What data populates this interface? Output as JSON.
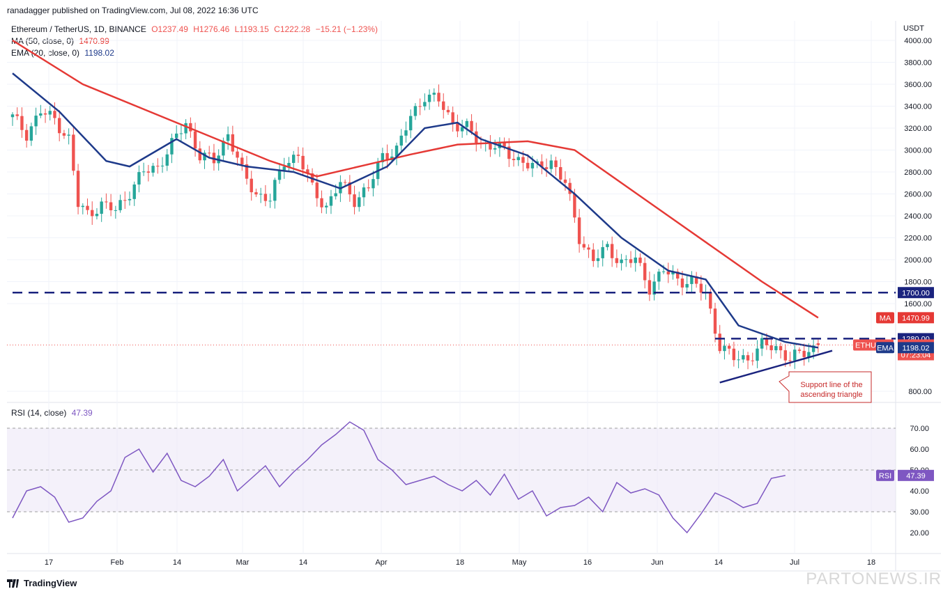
{
  "header": {
    "publisher": "ranadagger published on TradingView.com, Jul 08, 2022 16:36 UTC"
  },
  "legend": {
    "symbol": "Ethereum / TetherUS, 1D, BINANCE",
    "open": "O1237.49",
    "high": "H1276.46",
    "low": "L1193.15",
    "close": "C1222.28",
    "change": "−15.21 (−1.23%)",
    "ma_label": "MA (50, close, 0)",
    "ma_value": "1470.99",
    "ema_label": "EMA (20, close, 0)",
    "ema_value": "1198.02",
    "rsi_label": "RSI (14, close)",
    "rsi_value": "47.39"
  },
  "footer": {
    "brand": "TradingView",
    "watermark": "PARTONEWS.IR"
  },
  "colors": {
    "up": "#26a69a",
    "down": "#ef5350",
    "ma": "#e53935",
    "ema": "#1e3a8a",
    "rsi": "#7e57c2",
    "level": "#1a237e"
  },
  "chart_data": [
    {
      "type": "candlestick",
      "currency": "USDT",
      "ylim": [
        800,
        4000
      ],
      "y_ticks": [
        800,
        1600,
        1800,
        2000,
        2200,
        2400,
        2600,
        2800,
        3000,
        3200,
        3400,
        3600,
        3800,
        4000
      ],
      "y_tick_labels": [
        "800.00",
        "1600.00",
        "1800.00",
        "2000.00",
        "2200.00",
        "2400.00",
        "2600.00",
        "2800.00",
        "3000.00",
        "3200.00",
        "3400.00",
        "3600.00",
        "3800.00",
        "4000.00"
      ],
      "x_tick_labels": [
        "17",
        "Feb",
        "14",
        "Mar",
        "14",
        "Apr",
        "18",
        "May",
        "16",
        "Jun",
        "14",
        "Jul",
        "18"
      ],
      "close_path": [
        [
          0,
          3300
        ],
        [
          3,
          3150
        ],
        [
          6,
          3350
        ],
        [
          9,
          3280
        ],
        [
          12,
          3100
        ],
        [
          14,
          2500
        ],
        [
          16,
          2420
        ],
        [
          19,
          2500
        ],
        [
          22,
          2450
        ],
        [
          25,
          2620
        ],
        [
          28,
          2800
        ],
        [
          31,
          2850
        ],
        [
          34,
          3050
        ],
        [
          37,
          3250
        ],
        [
          40,
          2950
        ],
        [
          43,
          2900
        ],
        [
          46,
          3150
        ],
        [
          49,
          2800
        ],
        [
          52,
          2600
        ],
        [
          55,
          2550
        ],
        [
          58,
          2900
        ],
        [
          61,
          2950
        ],
        [
          64,
          2650
        ],
        [
          67,
          2480
        ],
        [
          70,
          2700
        ],
        [
          73,
          2550
        ],
        [
          76,
          2650
        ],
        [
          79,
          2950
        ],
        [
          82,
          3000
        ],
        [
          85,
          3300
        ],
        [
          88,
          3500
        ],
        [
          91,
          3450
        ],
        [
          94,
          3250
        ],
        [
          97,
          3200
        ],
        [
          100,
          3050
        ],
        [
          103,
          3050
        ],
        [
          106,
          2950
        ],
        [
          109,
          2900
        ],
        [
          112,
          2830
        ],
        [
          115,
          2900
        ],
        [
          118,
          2700
        ],
        [
          121,
          2200
        ],
        [
          124,
          2000
        ],
        [
          127,
          2100
        ],
        [
          130,
          1980
        ],
        [
          133,
          2000
        ],
        [
          136,
          1750
        ],
        [
          139,
          1900
        ],
        [
          142,
          1820
        ],
        [
          145,
          1800
        ],
        [
          148,
          1680
        ],
        [
          151,
          1220
        ],
        [
          154,
          1100
        ],
        [
          157,
          1100
        ],
        [
          160,
          1220
        ],
        [
          163,
          1200
        ],
        [
          166,
          1100
        ],
        [
          169,
          1150
        ],
        [
          172,
          1222
        ]
      ],
      "ohlc_last": {
        "open": 1237.49,
        "high": 1276.46,
        "low": 1193.15,
        "close": 1222.28
      },
      "ma50": {
        "label": "MA",
        "value": "1470.99",
        "path": [
          [
            0,
            4000
          ],
          [
            15,
            3600
          ],
          [
            35,
            3250
          ],
          [
            55,
            2900
          ],
          [
            65,
            2760
          ],
          [
            75,
            2860
          ],
          [
            85,
            2960
          ],
          [
            95,
            3050
          ],
          [
            110,
            3080
          ],
          [
            120,
            3000
          ],
          [
            130,
            2700
          ],
          [
            140,
            2400
          ],
          [
            150,
            2100
          ],
          [
            160,
            1800
          ],
          [
            172,
            1470.99
          ]
        ]
      },
      "ema20": {
        "label": "EMA",
        "value": "1198.02",
        "path": [
          [
            0,
            3700
          ],
          [
            10,
            3350
          ],
          [
            20,
            2900
          ],
          [
            25,
            2850
          ],
          [
            35,
            3100
          ],
          [
            42,
            2930
          ],
          [
            50,
            2850
          ],
          [
            60,
            2800
          ],
          [
            70,
            2650
          ],
          [
            80,
            2850
          ],
          [
            88,
            3200
          ],
          [
            95,
            3250
          ],
          [
            100,
            3100
          ],
          [
            110,
            2950
          ],
          [
            120,
            2600
          ],
          [
            130,
            2200
          ],
          [
            140,
            1900
          ],
          [
            148,
            1820
          ],
          [
            155,
            1400
          ],
          [
            165,
            1250
          ],
          [
            172,
            1198.02
          ]
        ]
      },
      "levels": [
        {
          "value": 1700,
          "label": "1700.00",
          "x_start": 0
        },
        {
          "value": 1280,
          "label": "1280.00",
          "x_start": 150
        }
      ],
      "price_label": {
        "symbol": "ETHUSDT",
        "value": "1222.28",
        "countdown": "07:23:04"
      },
      "support_line": {
        "from": [
          151,
          880
        ],
        "to": [
          175,
          1170
        ]
      },
      "annotation": "Support line of the ascending triangle"
    },
    {
      "type": "line",
      "name": "RSI (14, close)",
      "ylim": [
        15,
        75
      ],
      "y_ticks": [
        20,
        30,
        40,
        50,
        60,
        70
      ],
      "y_tick_labels": [
        "20.00",
        "30.00",
        "40.00",
        "50.00",
        "60.00",
        "70.00"
      ],
      "band": [
        30,
        70
      ],
      "midline": 50,
      "value": "47.39",
      "path": [
        [
          0,
          27
        ],
        [
          3,
          40
        ],
        [
          6,
          42
        ],
        [
          9,
          37
        ],
        [
          12,
          25
        ],
        [
          15,
          27
        ],
        [
          18,
          35
        ],
        [
          21,
          40
        ],
        [
          24,
          56
        ],
        [
          27,
          60
        ],
        [
          30,
          49
        ],
        [
          33,
          58
        ],
        [
          36,
          45
        ],
        [
          39,
          42
        ],
        [
          42,
          47
        ],
        [
          45,
          55
        ],
        [
          48,
          40
        ],
        [
          51,
          46
        ],
        [
          54,
          52
        ],
        [
          57,
          42
        ],
        [
          60,
          49
        ],
        [
          63,
          55
        ],
        [
          66,
          62
        ],
        [
          69,
          67
        ],
        [
          72,
          73
        ],
        [
          75,
          69
        ],
        [
          78,
          55
        ],
        [
          81,
          50
        ],
        [
          84,
          43
        ],
        [
          87,
          45
        ],
        [
          90,
          47
        ],
        [
          93,
          43
        ],
        [
          96,
          40
        ],
        [
          99,
          45
        ],
        [
          102,
          38
        ],
        [
          105,
          48
        ],
        [
          108,
          36
        ],
        [
          111,
          40
        ],
        [
          114,
          28
        ],
        [
          117,
          32
        ],
        [
          120,
          33
        ],
        [
          123,
          37
        ],
        [
          126,
          30
        ],
        [
          129,
          44
        ],
        [
          132,
          39
        ],
        [
          135,
          41
        ],
        [
          138,
          38
        ],
        [
          141,
          27
        ],
        [
          144,
          20
        ],
        [
          147,
          29
        ],
        [
          150,
          39
        ],
        [
          153,
          36
        ],
        [
          156,
          32
        ],
        [
          159,
          34
        ],
        [
          162,
          46
        ],
        [
          165,
          47.39
        ]
      ]
    }
  ]
}
